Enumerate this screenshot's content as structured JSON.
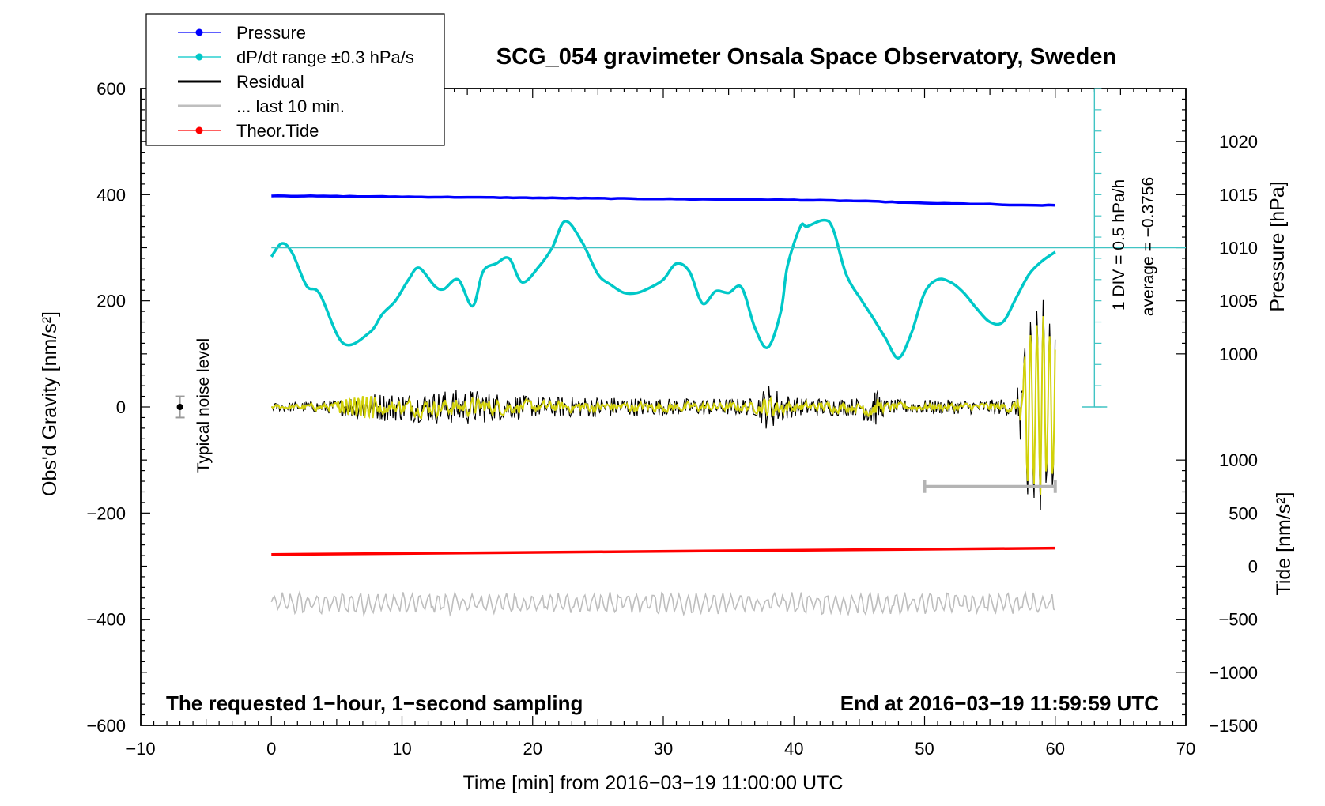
{
  "chart_data": {
    "type": "line",
    "title": "SCG_054 gravimeter Onsala Space Observatory, Sweden",
    "xlabel": "Time [min] from 2016−03−19 11:00:00 UTC",
    "ylabel_left": "Obs'd Gravity [nm/s²]",
    "ylabel_right_pressure": "Pressure [hPa]",
    "ylabel_right_tide": "Tide [nm/s²]",
    "xlim": [
      -10,
      70
    ],
    "ylim": [
      -600,
      600
    ],
    "x_ticks": [
      -10,
      0,
      10,
      20,
      30,
      40,
      50,
      60,
      70
    ],
    "x_tick_labels": [
      "−10",
      "0",
      "10",
      "20",
      "30",
      "40",
      "50",
      "60",
      "70"
    ],
    "y_ticks": [
      -600,
      -400,
      -200,
      0,
      200,
      400,
      600
    ],
    "y_tick_labels": [
      "−600",
      "−400",
      "−200",
      "0",
      "200",
      "400",
      "600"
    ],
    "pressure_axis": {
      "ticks": [
        1000,
        1005,
        1010,
        1015,
        1020
      ],
      "tick_labels": [
        "1000",
        "1005",
        "1010",
        "1015",
        "1020"
      ],
      "g_at_1000": 100,
      "g_per_hPa": 20
    },
    "tide_axis": {
      "ticks": [
        -1500,
        -1000,
        -500,
        0,
        500,
        1000
      ],
      "tick_labels": [
        "−1500",
        "−1000",
        "−500",
        "0",
        "500",
        "1000"
      ],
      "g_at_0": -300,
      "g_per_unit": 0.2
    },
    "legend": {
      "placement": "top-left",
      "items": [
        {
          "label": "Pressure",
          "color": "#0000ff",
          "marker": true
        },
        {
          "label": "dP/dt range ±0.3 hPa/s",
          "color": "#00c8c8",
          "marker": true
        },
        {
          "label": "Residual",
          "color": "#000000",
          "marker": false
        },
        {
          "label": "... last 10 min.",
          "color": "#bebebe",
          "marker": false
        },
        {
          "label": "Theor.Tide",
          "color": "#ff0000",
          "marker": true
        }
      ]
    },
    "series": [
      {
        "name": "Pressure",
        "color": "#0000ff",
        "axis": "pressure",
        "x": [
          0,
          10,
          20,
          30,
          40,
          45,
          50,
          55,
          57,
          60
        ],
        "values": [
          1014.9,
          1014.8,
          1014.7,
          1014.6,
          1014.5,
          1014.4,
          1014.2,
          1014.1,
          1014.0,
          1014.0
        ]
      },
      {
        "name": "dP/dt",
        "color": "#00c8c8",
        "axis": "left",
        "x": [
          0,
          0.8,
          1.6,
          2.7,
          3.7,
          5.5,
          7.5,
          8.5,
          9.5,
          10.5,
          11.3,
          12.5,
          13.2,
          14.3,
          15.4,
          16.2,
          17.2,
          18.2,
          19.2,
          20.5,
          21.5,
          22.5,
          23.8,
          25,
          26,
          27,
          28,
          29,
          30,
          31,
          32,
          33,
          34,
          35,
          36,
          37,
          38,
          39,
          39.5,
          40.5,
          41,
          42.3,
          43,
          44,
          45.2,
          46,
          47,
          48,
          49,
          50,
          51,
          52,
          53,
          54,
          55,
          56,
          57,
          58,
          59,
          60
        ],
        "values": [
          283,
          308,
          290,
          228,
          213,
          120,
          140,
          175,
          200,
          240,
          262,
          228,
          222,
          240,
          190,
          255,
          270,
          280,
          235,
          265,
          300,
          350,
          310,
          250,
          230,
          215,
          215,
          225,
          240,
          270,
          255,
          195,
          218,
          215,
          225,
          150,
          112,
          180,
          265,
          340,
          340,
          352,
          335,
          250,
          200,
          170,
          130,
          92,
          140,
          215,
          240,
          235,
          215,
          185,
          160,
          160,
          205,
          250,
          275,
          292
        ]
      },
      {
        "name": "Residual",
        "color": "#000000",
        "axis": "left",
        "baseline": 0,
        "x": [
          0,
          5,
          7,
          10,
          15,
          20,
          25,
          30,
          37,
          38,
          40,
          45,
          46,
          47,
          55,
          57,
          58,
          59,
          60
        ],
        "amplitude": [
          8,
          15,
          30,
          30,
          38,
          22,
          22,
          18,
          18,
          50,
          20,
          18,
          50,
          15,
          15,
          20,
          200,
          220,
          220
        ]
      },
      {
        "name": "... last 10 min.",
        "color": "#bebebe",
        "axis": "left",
        "baseline": -370,
        "x": [
          0,
          60
        ],
        "amplitude": [
          18,
          18
        ]
      },
      {
        "name": "Theor.Tide",
        "color": "#ff0000",
        "axis": "tide",
        "x": [
          0,
          60
        ],
        "values": [
          110,
          170
        ]
      }
    ],
    "annotations": {
      "noise_label": "Typical noise level",
      "noise_point": {
        "x": -7,
        "y": 0,
        "error": 20
      },
      "range_bar": {
        "x_start": 50,
        "x_end": 60,
        "y": -150
      },
      "scale_bar_label_1": "1 DIV = 0.5 hPa/h",
      "scale_bar_label_2": "average = −0.3756",
      "reference_line_g": 300,
      "footer_left": "The requested 1−hour, 1−second sampling",
      "footer_right": "End at 2016−03−19 11:59:59 UTC"
    }
  }
}
